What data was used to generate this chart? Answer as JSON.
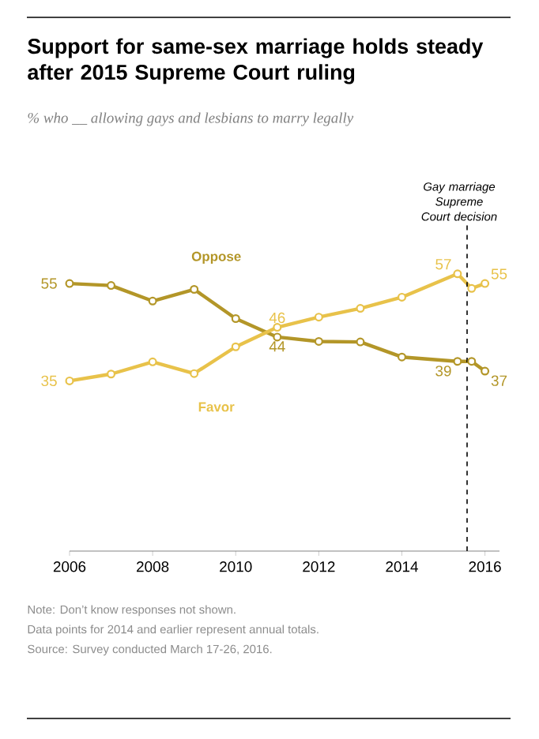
{
  "chart_data": {
    "type": "line",
    "title": "Support for same-sex marriage holds steady after 2015 Supreme Court ruling",
    "subtitle": "% who __ allowing gays and lesbians to marry legally",
    "x": [
      2006,
      2007,
      2008,
      2009,
      2010,
      2011,
      2012,
      2013,
      2014,
      2015.34,
      2015.68,
      2016
    ],
    "xlim": [
      2006,
      2016.35
    ],
    "xticks": [
      2006,
      2008,
      2010,
      2012,
      2014,
      2016
    ],
    "tick_labels": "x",
    "marker": "circle",
    "legend": false,
    "series": [
      {
        "name": "Oppose",
        "color": "#b39628",
        "values": [
          55,
          54.6,
          51.4,
          53.8,
          47.8,
          44,
          43.1,
          43,
          39.9,
          39,
          39,
          37
        ],
        "value_labels": [
          "55",
          null,
          null,
          null,
          null,
          "44",
          null,
          null,
          null,
          "39",
          null,
          "37"
        ]
      },
      {
        "name": "Favor",
        "color": "#e8c24a",
        "values": [
          35,
          36.4,
          38.9,
          36.5,
          42,
          46,
          48.1,
          49.9,
          52.2,
          57,
          54,
          55
        ],
        "value_labels": [
          "35",
          null,
          null,
          null,
          null,
          "46",
          null,
          null,
          null,
          "57",
          null,
          "55"
        ]
      }
    ],
    "ref_lines": [
      {
        "axis": "x",
        "value": 2015.57,
        "label": "Gay marriage Supreme Court decision",
        "color": "#000000",
        "line_style": "dashed"
      }
    ],
    "annotations": [
      "Note: Don’t know responses not shown.",
      "Data points for 2014 and earlier represent annual totals.",
      "Source: Survey conducted March 17-26, 2016."
    ]
  }
}
